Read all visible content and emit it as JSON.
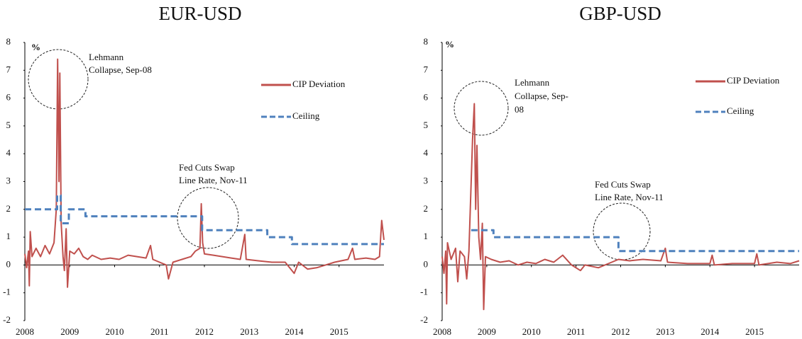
{
  "chart_data": [
    {
      "type": "line",
      "title": "EUR-USD",
      "y_label": "%",
      "xlim": [
        2008,
        2016
      ],
      "xticks": [
        2008,
        2009,
        2010,
        2011,
        2012,
        2013,
        2014,
        2015
      ],
      "ylim": [
        -2,
        8
      ],
      "yticks": [
        -2,
        -1,
        0,
        1,
        2,
        3,
        4,
        5,
        6,
        7,
        8
      ],
      "series": [
        {
          "name": "CIP Deviation",
          "color": "#c0504d",
          "style": "solid",
          "x": [
            2008.0,
            2008.04,
            2008.08,
            2008.1,
            2008.12,
            2008.16,
            2008.25,
            2008.35,
            2008.45,
            2008.55,
            2008.65,
            2008.7,
            2008.73,
            2008.76,
            2008.78,
            2008.81,
            2008.85,
            2008.88,
            2008.92,
            2008.95,
            2009.0,
            2009.1,
            2009.2,
            2009.3,
            2009.4,
            2009.5,
            2009.7,
            2009.9,
            2010.1,
            2010.3,
            2010.5,
            2010.7,
            2010.8,
            2010.85,
            2011.0,
            2011.15,
            2011.2,
            2011.3,
            2011.5,
            2011.7,
            2011.8,
            2011.9,
            2011.93,
            2011.96,
            2012.0,
            2012.2,
            2012.4,
            2012.6,
            2012.8,
            2012.9,
            2012.93,
            2013.2,
            2013.5,
            2013.8,
            2014.0,
            2014.1,
            2014.3,
            2014.5,
            2014.7,
            2014.9,
            2015.2,
            2015.3,
            2015.35,
            2015.6,
            2015.8,
            2015.9,
            2015.95,
            2016.0
          ],
          "values": [
            0.4,
            -0.1,
            0.5,
            -0.75,
            1.2,
            0.3,
            0.6,
            0.3,
            0.7,
            0.4,
            0.8,
            2.0,
            7.4,
            3.0,
            6.9,
            1.5,
            0.3,
            -0.2,
            1.3,
            -0.8,
            0.5,
            0.4,
            0.6,
            0.3,
            0.2,
            0.35,
            0.2,
            0.25,
            0.2,
            0.35,
            0.3,
            0.25,
            0.7,
            0.2,
            0.1,
            0.0,
            -0.5,
            0.1,
            0.2,
            0.3,
            0.5,
            0.6,
            2.2,
            0.8,
            0.4,
            0.35,
            0.3,
            0.25,
            0.2,
            1.1,
            0.2,
            0.15,
            0.1,
            0.1,
            -0.3,
            0.1,
            -0.15,
            -0.1,
            0.0,
            0.1,
            0.2,
            0.6,
            0.2,
            0.25,
            0.2,
            0.3,
            1.6,
            0.9
          ]
        },
        {
          "name": "Ceiling",
          "color": "#4f81bd",
          "style": "dashed",
          "x": [
            2008.0,
            2008.72,
            2008.72,
            2008.8,
            2008.8,
            2008.98,
            2008.98,
            2009.35,
            2009.35,
            2011.95,
            2011.95,
            2013.4,
            2013.4,
            2013.95,
            2013.95,
            2016.0
          ],
          "values": [
            2.0,
            2.0,
            2.5,
            2.5,
            1.5,
            1.5,
            2.0,
            2.0,
            1.75,
            1.75,
            1.25,
            1.25,
            1.0,
            1.0,
            0.75,
            0.75
          ]
        }
      ],
      "annotations": [
        {
          "lines": [
            "Lehmann",
            "Collapse, Sep-08"
          ]
        },
        {
          "lines": [
            "Fed Cuts Swap",
            "Line Rate, Nov-11"
          ]
        }
      ]
    },
    {
      "type": "line",
      "title": "GBP-USD",
      "y_label": "%",
      "xlim": [
        2008,
        2016
      ],
      "xticks": [
        2008,
        2009,
        2010,
        2011,
        2012,
        2013,
        2014,
        2015
      ],
      "ylim": [
        -2,
        8
      ],
      "yticks": [
        -2,
        -1,
        0,
        1,
        2,
        3,
        4,
        5,
        6,
        7,
        8
      ],
      "series": [
        {
          "name": "CIP Deviation",
          "color": "#c0504d",
          "style": "solid",
          "x": [
            2008.0,
            2008.04,
            2008.08,
            2008.1,
            2008.12,
            2008.2,
            2008.3,
            2008.35,
            2008.4,
            2008.5,
            2008.55,
            2008.6,
            2008.68,
            2008.72,
            2008.75,
            2008.78,
            2008.82,
            2008.86,
            2008.9,
            2008.93,
            2008.97,
            2009.1,
            2009.3,
            2009.5,
            2009.7,
            2009.9,
            2010.1,
            2010.3,
            2010.5,
            2010.7,
            2010.9,
            2011.1,
            2011.2,
            2011.5,
            2011.8,
            2011.95,
            2012.2,
            2012.5,
            2012.9,
            2013.0,
            2013.05,
            2013.5,
            2014.0,
            2014.05,
            2014.1,
            2014.5,
            2015.0,
            2015.05,
            2015.1,
            2015.5,
            2015.8,
            2016.0
          ],
          "values": [
            0.3,
            -0.3,
            0.5,
            -1.4,
            0.8,
            0.2,
            0.6,
            -0.6,
            0.5,
            0.3,
            -0.5,
            0.5,
            4.5,
            5.8,
            2.0,
            4.3,
            1.0,
            0.2,
            1.5,
            -1.6,
            0.3,
            0.2,
            0.1,
            0.15,
            0.0,
            0.1,
            0.05,
            0.2,
            0.1,
            0.35,
            0.0,
            -0.2,
            0.0,
            -0.1,
            0.1,
            0.2,
            0.15,
            0.2,
            0.15,
            0.6,
            0.1,
            0.05,
            0.05,
            0.35,
            0.0,
            0.05,
            0.05,
            0.4,
            0.0,
            0.1,
            0.05,
            0.15
          ]
        },
        {
          "name": "Ceiling",
          "color": "#4f81bd",
          "style": "dashed",
          "x": [
            2008.65,
            2009.15,
            2009.15,
            2011.95,
            2011.95,
            2016.0
          ],
          "values": [
            1.25,
            1.25,
            1.0,
            1.0,
            0.5,
            0.5
          ]
        }
      ],
      "annotations": [
        {
          "lines": [
            "Lehmann",
            "Collapse, Sep-",
            "08"
          ]
        },
        {
          "lines": [
            "Fed Cuts Swap",
            "Line Rate, Nov-11"
          ]
        }
      ]
    }
  ]
}
